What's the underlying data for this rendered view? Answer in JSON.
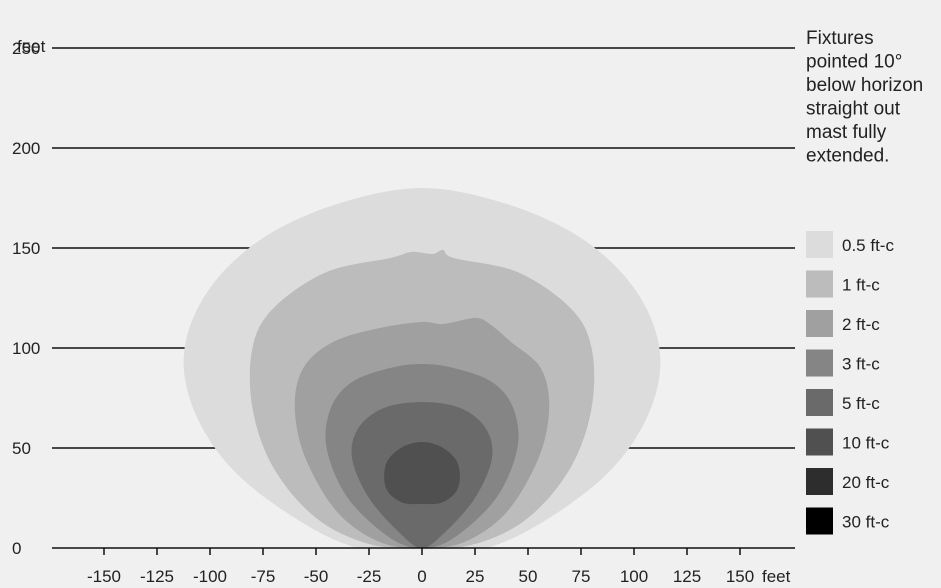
{
  "chart_data": {
    "type": "area",
    "title": "",
    "xlabel": "feet",
    "ylabel": "feet",
    "xlim": [
      -150,
      150
    ],
    "ylim": [
      0,
      250
    ],
    "x_ticks": [
      -150,
      -125,
      -100,
      -75,
      -50,
      -25,
      0,
      25,
      50,
      75,
      100,
      125,
      150
    ],
    "y_ticks": [
      0,
      50,
      100,
      150,
      200,
      250
    ],
    "grid": "horizontal",
    "legend_position": "right",
    "annotation_lines": [
      "Fixtures",
      "pointed 10°",
      "below horizon",
      "straight out",
      "mast fully",
      "extended."
    ],
    "series": [
      {
        "name": "0.5 ft-c",
        "color": "#dcdcdc",
        "points": [
          [
            0,
            0
          ],
          [
            -30,
            0
          ],
          [
            -60,
            15
          ],
          [
            -90,
            40
          ],
          [
            -108,
            70
          ],
          [
            -112,
            100
          ],
          [
            -100,
            130
          ],
          [
            -75,
            155
          ],
          [
            -40,
            172
          ],
          [
            0,
            180
          ],
          [
            40,
            172
          ],
          [
            75,
            155
          ],
          [
            100,
            130
          ],
          [
            112,
            100
          ],
          [
            108,
            70
          ],
          [
            90,
            40
          ],
          [
            60,
            15
          ],
          [
            30,
            0
          ]
        ]
      },
      {
        "name": "1 ft-c",
        "color": "#bcbcbc",
        "points": [
          [
            0,
            0
          ],
          [
            -25,
            2
          ],
          [
            -50,
            15
          ],
          [
            -70,
            40
          ],
          [
            -80,
            70
          ],
          [
            -80,
            100
          ],
          [
            -70,
            120
          ],
          [
            -45,
            138
          ],
          [
            -15,
            145
          ],
          [
            -5,
            148
          ],
          [
            5,
            147
          ],
          [
            10,
            149
          ],
          [
            15,
            145
          ],
          [
            45,
            138
          ],
          [
            70,
            120
          ],
          [
            80,
            100
          ],
          [
            80,
            70
          ],
          [
            70,
            40
          ],
          [
            50,
            15
          ],
          [
            25,
            2
          ]
        ]
      },
      {
        "name": "2 ft-c",
        "color": "#a0a0a0",
        "points": [
          [
            0,
            0
          ],
          [
            -20,
            3
          ],
          [
            -40,
            18
          ],
          [
            -55,
            45
          ],
          [
            -60,
            70
          ],
          [
            -56,
            90
          ],
          [
            -42,
            103
          ],
          [
            -20,
            110
          ],
          [
            0,
            113
          ],
          [
            10,
            112
          ],
          [
            25,
            115
          ],
          [
            32,
            112
          ],
          [
            42,
            103
          ],
          [
            56,
            90
          ],
          [
            60,
            70
          ],
          [
            55,
            45
          ],
          [
            40,
            18
          ],
          [
            20,
            3
          ]
        ]
      },
      {
        "name": "3 ft-c",
        "color": "#858585",
        "points": [
          [
            0,
            0
          ],
          [
            -15,
            5
          ],
          [
            -35,
            25
          ],
          [
            -45,
            50
          ],
          [
            -43,
            70
          ],
          [
            -33,
            83
          ],
          [
            -15,
            90
          ],
          [
            0,
            92
          ],
          [
            15,
            90
          ],
          [
            33,
            83
          ],
          [
            43,
            70
          ],
          [
            45,
            50
          ],
          [
            35,
            25
          ],
          [
            15,
            5
          ]
        ]
      },
      {
        "name": "5 ft-c",
        "color": "#6a6a6a",
        "points": [
          [
            0,
            0
          ],
          [
            -10,
            7
          ],
          [
            -25,
            25
          ],
          [
            -33,
            45
          ],
          [
            -30,
            60
          ],
          [
            -18,
            70
          ],
          [
            0,
            73
          ],
          [
            18,
            70
          ],
          [
            30,
            60
          ],
          [
            33,
            45
          ],
          [
            25,
            25
          ],
          [
            10,
            7
          ]
        ]
      },
      {
        "name": "10 ft-c",
        "color": "#505050",
        "points": [
          [
            0,
            22
          ],
          [
            -10,
            23
          ],
          [
            -17,
            30
          ],
          [
            -17,
            42
          ],
          [
            -10,
            50
          ],
          [
            0,
            53
          ],
          [
            10,
            50
          ],
          [
            17,
            42
          ],
          [
            17,
            30
          ],
          [
            10,
            23
          ]
        ]
      },
      {
        "name": "20 ft-c",
        "color": "#2d2d2d",
        "points": []
      },
      {
        "name": "30 ft-c",
        "color": "#000000",
        "points": []
      }
    ]
  }
}
